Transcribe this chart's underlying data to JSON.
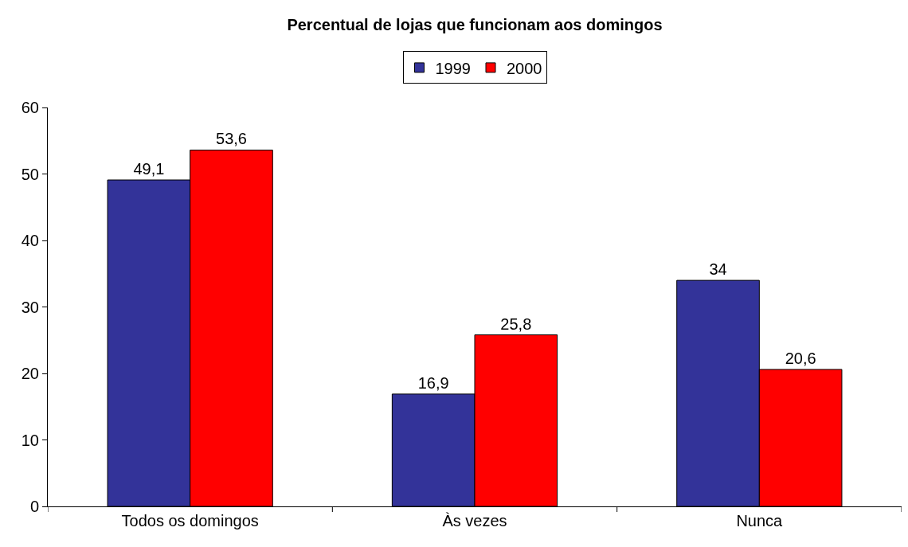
{
  "chart_data": {
    "type": "bar",
    "title": "Percentual de lojas que funcionam aos domingos",
    "categories": [
      "Todos os domingos",
      "Às vezes",
      "Nunca"
    ],
    "series": [
      {
        "name": "1999",
        "color": "#333399",
        "values": [
          49.1,
          16.9,
          34
        ],
        "value_labels": [
          "49,1",
          "16,9",
          "34"
        ]
      },
      {
        "name": "2000",
        "color": "#ff0000",
        "values": [
          53.6,
          25.8,
          20.6
        ],
        "value_labels": [
          "53,6",
          "25,8",
          "20,6"
        ]
      }
    ],
    "ylim": [
      0,
      60
    ],
    "yticks": [
      0,
      10,
      20,
      30,
      40,
      50,
      60
    ],
    "grid": false,
    "legend": "top"
  }
}
